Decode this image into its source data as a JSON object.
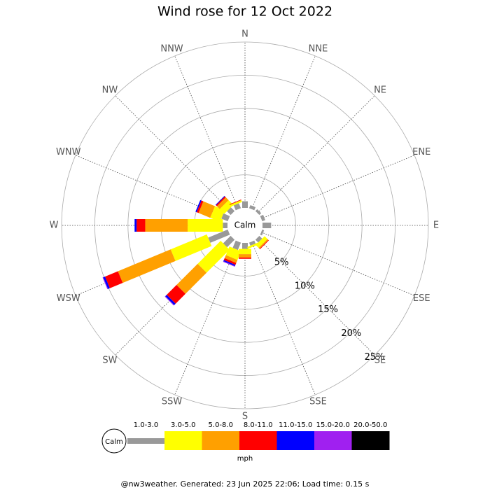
{
  "chart_data": {
    "type": "windrose",
    "title": "Wind rose for 12 Oct 2022",
    "directions": [
      "N",
      "NNE",
      "NE",
      "ENE",
      "E",
      "ESE",
      "SE",
      "SSE",
      "S",
      "SSW",
      "SW",
      "WSW",
      "W",
      "WNW",
      "NW",
      "NNW"
    ],
    "calm_label": "Calm",
    "unit": "mph",
    "rlim": [
      0,
      25
    ],
    "rticks": [
      {
        "value": 5,
        "label": "5%"
      },
      {
        "value": 10,
        "label": "10%"
      },
      {
        "value": 15,
        "label": "15%"
      },
      {
        "value": 20,
        "label": "20%"
      },
      {
        "value": 25,
        "label": "25%"
      }
    ],
    "series": [
      {
        "name": "1.0-3.0",
        "color": "#999999",
        "values": [
          1.0,
          0.5,
          0.4,
          0.5,
          1.3,
          0.3,
          0.6,
          0.5,
          0.9,
          1.2,
          1.6,
          3.2,
          0.7,
          1.05,
          0.8,
          0.8
        ]
      },
      {
        "name": "3.0-5.0",
        "color": "#ffff00",
        "values": [
          0,
          0,
          0,
          0,
          0,
          0,
          0.6,
          0.3,
          0.8,
          1.4,
          4.9,
          5.9,
          5.3,
          1.6,
          1.0,
          0.3
        ]
      },
      {
        "name": "5.0-8.0",
        "color": "#ffa000",
        "values": [
          0,
          0,
          0,
          0,
          0,
          0,
          0.2,
          0,
          0.5,
          0.5,
          4.5,
          8.6,
          6.4,
          1.9,
          0.6,
          0
        ]
      },
      {
        "name": "8.0-11.0",
        "color": "#ff0000",
        "values": [
          0,
          0,
          0,
          0,
          0,
          0,
          0.1,
          0,
          0.2,
          0.3,
          2.1,
          2.1,
          1.3,
          0.3,
          0.2,
          0.1
        ]
      },
      {
        "name": "11.0-15.0",
        "color": "#0000ff",
        "values": [
          0,
          0,
          0,
          0,
          0,
          0,
          0,
          0,
          0,
          0.2,
          0.3,
          0.3,
          0.3,
          0.2,
          0.1,
          0
        ]
      },
      {
        "name": "15.0-20.0",
        "color": "#a020f0",
        "values": [
          0,
          0,
          0,
          0,
          0,
          0,
          0,
          0,
          0,
          0.1,
          0.1,
          0.1,
          0,
          0,
          0,
          0
        ]
      },
      {
        "name": "20.0-50.0",
        "color": "#000000",
        "values": [
          0,
          0,
          0,
          0,
          0,
          0,
          0,
          0,
          0,
          0,
          0,
          0,
          0,
          0,
          0,
          0
        ]
      }
    ],
    "footer": "@nw3weather. Generated: 23 Jun 2025 22:06; Load time: 0.15 s"
  }
}
